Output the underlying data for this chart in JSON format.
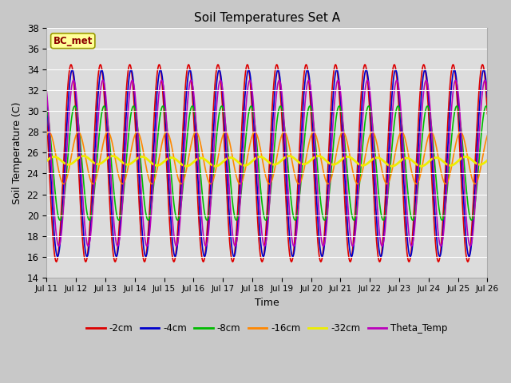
{
  "title": "Soil Temperatures Set A",
  "xlabel": "Time",
  "ylabel": "Soil Temperature (C)",
  "ylim": [
    14,
    38
  ],
  "annotation": "BC_met",
  "fig_facecolor": "#c8c8c8",
  "plot_facecolor": "#dcdcdc",
  "series": {
    "-2cm": {
      "color": "#dd0000",
      "lw": 1.2,
      "mean": 25.0,
      "amp": 9.5,
      "phase": 14.0,
      "amp2": 0.0,
      "phase2": 0
    },
    "-4cm": {
      "color": "#0000cc",
      "lw": 1.2,
      "mean": 25.0,
      "amp": 9.0,
      "phase": 15.0,
      "amp2": 0.0,
      "phase2": 0
    },
    "-8cm": {
      "color": "#00bb00",
      "lw": 1.2,
      "mean": 25.0,
      "amp": 5.5,
      "phase": 17.0,
      "amp2": 0.0,
      "phase2": 0
    },
    "-16cm": {
      "color": "#ff8800",
      "lw": 1.2,
      "mean": 25.5,
      "amp": 2.5,
      "phase": 20.0,
      "amp2": 0.0,
      "phase2": 0
    },
    "-32cm": {
      "color": "#eeee00",
      "lw": 2.0,
      "mean": 25.2,
      "amp": 0.4,
      "phase": 0.0,
      "amp2": 0.1,
      "phase2": 7
    },
    "Theta_Temp": {
      "color": "#bb00bb",
      "lw": 1.2,
      "mean": 25.0,
      "amp": 8.0,
      "phase": 16.0,
      "amp2": 0.0,
      "phase2": 0
    }
  },
  "series_order": [
    "-2cm",
    "-4cm",
    "-8cm",
    "-16cm",
    "-32cm",
    "Theta_Temp"
  ],
  "xtick_labels": [
    "Jul 11",
    "Jul 12",
    "Jul 13",
    "Jul 14",
    "Jul 15",
    "Jul 16",
    "Jul 17",
    "Jul 18",
    "Jul 19",
    "Jul 20",
    "Jul 21",
    "Jul 22",
    "Jul 23",
    "Jul 24",
    "Jul 25",
    "Jul 26"
  ],
  "ytick_values": [
    14,
    16,
    18,
    20,
    22,
    24,
    26,
    28,
    30,
    32,
    34,
    36,
    38
  ],
  "grid_color": "#ffffff",
  "grid_lw": 0.8
}
